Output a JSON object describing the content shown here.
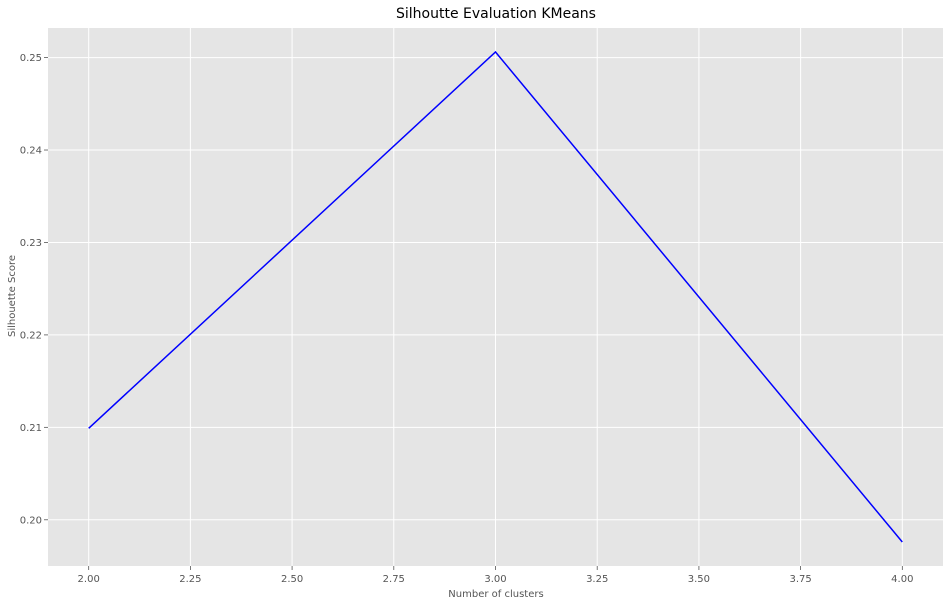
{
  "chart_data": {
    "type": "line",
    "title": "Silhoutte Evaluation KMeans",
    "xlabel": "Number of clusters",
    "ylabel": "Silhouette Score",
    "series": [
      {
        "x": [
          2,
          3,
          4
        ],
        "y": [
          0.2099,
          0.2506,
          0.1976
        ],
        "color": "#0000ff"
      }
    ],
    "xlim": [
      1.9,
      4.1
    ],
    "ylim": [
      0.195,
      0.2532
    ],
    "xticks": [
      2.0,
      2.25,
      2.5,
      2.75,
      3.0,
      3.25,
      3.5,
      3.75,
      4.0
    ],
    "xtick_labels": [
      "2.00",
      "2.25",
      "2.50",
      "2.75",
      "3.00",
      "3.25",
      "3.50",
      "3.75",
      "4.00"
    ],
    "yticks": [
      0.2,
      0.21,
      0.22,
      0.23,
      0.24,
      0.25
    ],
    "ytick_labels": [
      "0.20",
      "0.21",
      "0.22",
      "0.23",
      "0.24",
      "0.25"
    ],
    "grid": true,
    "style": {
      "plot_background": "#e5e5e5",
      "grid_color": "#ffffff",
      "tick_label_color": "#555555",
      "title_color": "#000000"
    }
  }
}
